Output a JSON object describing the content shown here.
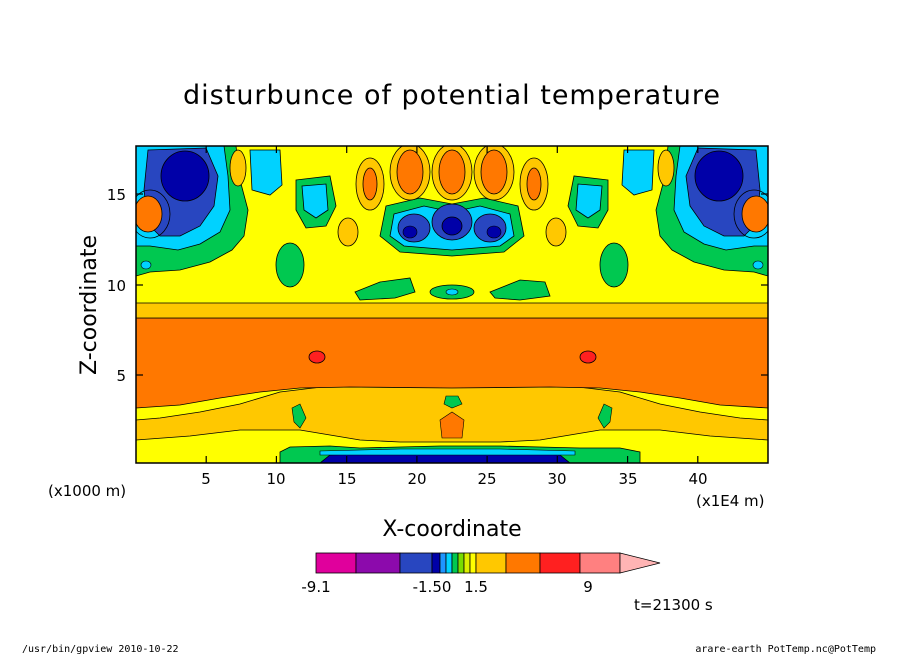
{
  "chart_data": {
    "type": "heatmap",
    "title": "disturbunce of potential temperature",
    "xlabel": "X-coordinate",
    "ylabel": "Z-coordinate",
    "x_unit_left": "(x1000 m)",
    "x_unit_right": "(x1E4 m)",
    "xlim": [
      0,
      45
    ],
    "ylim": [
      0,
      17.5
    ],
    "x_ticks": [
      "5",
      "10",
      "15",
      "20",
      "25",
      "30",
      "35",
      "40"
    ],
    "y_ticks": [
      "5",
      "10",
      "15"
    ],
    "colorbar_labels": [
      "-9.1",
      "-1.50",
      "1.5",
      "9"
    ],
    "colorbar_colors": [
      "#e0009c",
      "#8c0aac",
      "#2846c0",
      "#0000a8",
      "#1e96ff",
      "#00d2ff",
      "#00c850",
      "#78dc00",
      "#dcf000",
      "#ffff00",
      "#ffc800",
      "#ff7800",
      "#ff2020",
      "#ff8080",
      "#ffb4b4"
    ],
    "levels": [
      "yellow",
      "gold",
      "orange",
      "red",
      "green",
      "cyan",
      "lightblue",
      "blue",
      "navy"
    ],
    "annotation_time": "t=21300 s"
  },
  "footer": {
    "left": "/usr/bin/gpview   2010-10-22",
    "right": "arare-earth_PotTemp.nc@PotTemp"
  }
}
